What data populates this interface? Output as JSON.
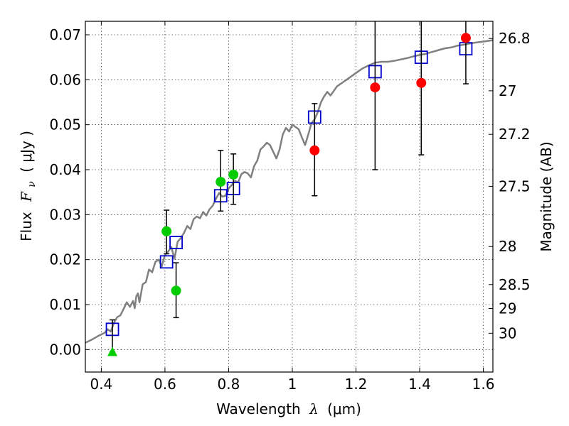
{
  "chart_data": {
    "type": "scatter",
    "xlabel": "Wavelength",
    "xlabel_symbol": "λ",
    "xlabel_unit": "(μm)",
    "ylabel": "Flux",
    "ylabel_symbol": "F",
    "ylabel_subscript": "ν",
    "ylabel_unit": "( μJy )",
    "y2label": "Magnitude (AB)",
    "xlim": [
      0.35,
      1.63
    ],
    "ylim": [
      -0.005,
      0.073
    ],
    "grid": true,
    "x_ticks": [
      0.4,
      0.6,
      0.8,
      1.0,
      1.2,
      1.4,
      1.6
    ],
    "x_tick_labels": [
      "0.4",
      "0.6",
      "0.8",
      "1",
      "1.2",
      "1.4",
      "1.6"
    ],
    "y_ticks": [
      0.0,
      0.01,
      0.02,
      0.03,
      0.04,
      0.05,
      0.06,
      0.07
    ],
    "y_tick_labels": [
      "0.00",
      "0.01",
      "0.02",
      "0.03",
      "0.04",
      "0.05",
      "0.06",
      "0.07"
    ],
    "y2_ticks": [
      {
        "label": "26.8",
        "mag": 26.8
      },
      {
        "label": "27",
        "mag": 27.0
      },
      {
        "label": "27.2",
        "mag": 27.2
      },
      {
        "label": "27.5",
        "mag": 27.5
      },
      {
        "label": "28",
        "mag": 28.0
      },
      {
        "label": "28.5",
        "mag": 28.5
      },
      {
        "label": "29",
        "mag": 29.0
      },
      {
        "label": "30",
        "mag": 30.0
      }
    ],
    "series": [
      {
        "kind": "line",
        "color": "#808080",
        "x": [
          0.35,
          0.37,
          0.39,
          0.41,
          0.42,
          0.43,
          0.44,
          0.45,
          0.46,
          0.47,
          0.48,
          0.49,
          0.5,
          0.505,
          0.51,
          0.515,
          0.52,
          0.53,
          0.54,
          0.55,
          0.56,
          0.57,
          0.58,
          0.59,
          0.6,
          0.61,
          0.62,
          0.63,
          0.64,
          0.65,
          0.66,
          0.67,
          0.68,
          0.69,
          0.7,
          0.71,
          0.72,
          0.73,
          0.74,
          0.75,
          0.76,
          0.77,
          0.78,
          0.79,
          0.8,
          0.81,
          0.82,
          0.83,
          0.84,
          0.85,
          0.86,
          0.87,
          0.88,
          0.89,
          0.9,
          0.91,
          0.92,
          0.93,
          0.94,
          0.95,
          0.96,
          0.97,
          0.98,
          0.99,
          1.0,
          1.01,
          1.02,
          1.03,
          1.04,
          1.05,
          1.06,
          1.07,
          1.08,
          1.09,
          1.1,
          1.11,
          1.12,
          1.13,
          1.14,
          1.16,
          1.18,
          1.2,
          1.22,
          1.24,
          1.26,
          1.28,
          1.3,
          1.32,
          1.34,
          1.36,
          1.38,
          1.4,
          1.42,
          1.44,
          1.46,
          1.48,
          1.5,
          1.52,
          1.54,
          1.56,
          1.58,
          1.6,
          1.63
        ],
        "y": [
          0.0015,
          0.0022,
          0.003,
          0.0037,
          0.0045,
          0.004,
          0.006,
          0.0072,
          0.0076,
          0.009,
          0.0105,
          0.0095,
          0.0108,
          0.0092,
          0.0118,
          0.0125,
          0.0105,
          0.0145,
          0.015,
          0.0178,
          0.0172,
          0.0195,
          0.02,
          0.0185,
          0.021,
          0.0218,
          0.0228,
          0.0202,
          0.024,
          0.0248,
          0.026,
          0.0275,
          0.0268,
          0.029,
          0.0296,
          0.0292,
          0.0306,
          0.0298,
          0.0312,
          0.032,
          0.0335,
          0.0348,
          0.034,
          0.0342,
          0.0358,
          0.0366,
          0.0375,
          0.0372,
          0.039,
          0.0395,
          0.0392,
          0.0383,
          0.0408,
          0.042,
          0.0445,
          0.0452,
          0.046,
          0.0455,
          0.044,
          0.0425,
          0.0445,
          0.0478,
          0.0493,
          0.0485,
          0.05,
          0.0495,
          0.049,
          0.0472,
          0.0455,
          0.0478,
          0.0503,
          0.0512,
          0.0528,
          0.055,
          0.0563,
          0.0573,
          0.0565,
          0.0575,
          0.0585,
          0.0595,
          0.0605,
          0.0615,
          0.0625,
          0.0632,
          0.0638,
          0.064,
          0.064,
          0.0642,
          0.0645,
          0.0648,
          0.0652,
          0.0655,
          0.0658,
          0.0662,
          0.0666,
          0.067,
          0.0672,
          0.0676,
          0.0678,
          0.0681,
          0.0683,
          0.0685,
          0.0688
        ]
      },
      {
        "kind": "square",
        "color": "#0000cc",
        "x": [
          0.435,
          0.605,
          0.635,
          0.775,
          0.815,
          1.07,
          1.26,
          1.405,
          1.545
        ],
        "y": [
          0.0045,
          0.0195,
          0.0238,
          0.0342,
          0.0358,
          0.0517,
          0.0618,
          0.065,
          0.0669
        ]
      },
      {
        "kind": "circle",
        "color": "#00cc00",
        "x": [
          0.605,
          0.635,
          0.775,
          0.815
        ],
        "y": [
          0.0263,
          0.0131,
          0.0373,
          0.0389
        ],
        "yerr_low": [
          0.0213,
          0.0071,
          0.0308,
          0.0323
        ],
        "yerr_high": [
          0.031,
          0.0193,
          0.0443,
          0.0435
        ]
      },
      {
        "kind": "circle",
        "color": "#ff0000",
        "x": [
          1.07,
          1.26,
          1.405,
          1.545
        ],
        "y": [
          0.0443,
          0.0583,
          0.0593,
          0.0693
        ],
        "yerr_low": [
          0.0342,
          0.04,
          0.0433,
          0.0591
        ],
        "yerr_high": [
          0.0547,
          0.073,
          0.073,
          0.073
        ]
      },
      {
        "kind": "triangle",
        "color": "#00cc00",
        "x": [
          0.435
        ],
        "y": [
          -0.0005
        ],
        "yerr_low": [
          -0.0005
        ],
        "yerr_high": [
          0.0066
        ]
      }
    ]
  }
}
